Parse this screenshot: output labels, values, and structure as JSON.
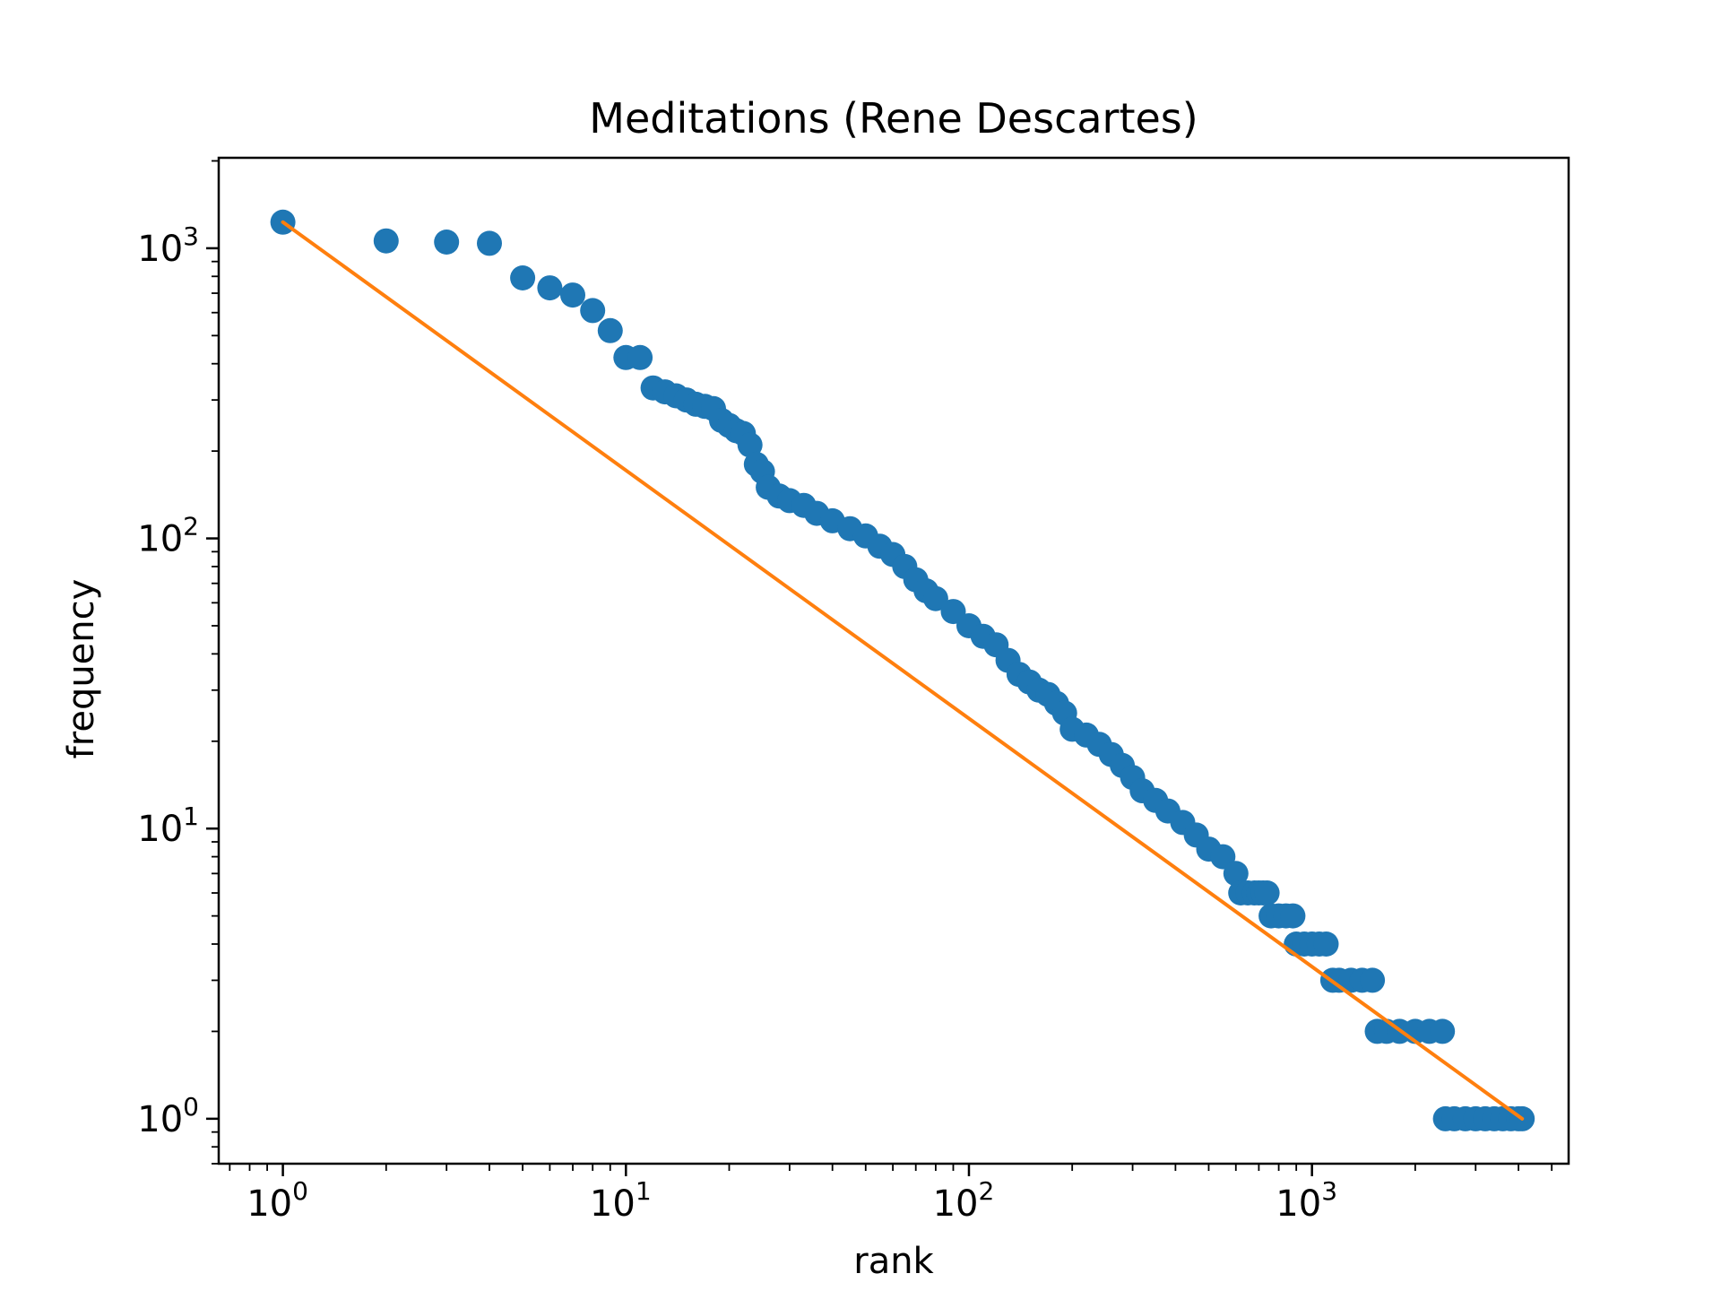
{
  "chart_data": {
    "type": "scatter",
    "title": "Meditations (Rene Descartes)",
    "xlabel": "rank",
    "ylabel": "frequency",
    "xscale": "log",
    "yscale": "log",
    "xlim": [
      0.65,
      5600
    ],
    "ylim": [
      0.7,
      2050
    ],
    "grid": false,
    "legend": "none",
    "colors": {
      "points": "#1f77b4",
      "fit": "#ff7f0e"
    },
    "x_ticks": [
      {
        "base": "10",
        "exp": "0",
        "value": 1
      },
      {
        "base": "10",
        "exp": "1",
        "value": 10
      },
      {
        "base": "10",
        "exp": "2",
        "value": 100
      },
      {
        "base": "10",
        "exp": "3",
        "value": 1000
      }
    ],
    "y_ticks": [
      {
        "base": "10",
        "exp": "0",
        "value": 1
      },
      {
        "base": "10",
        "exp": "1",
        "value": 10
      },
      {
        "base": "10",
        "exp": "2",
        "value": 100
      },
      {
        "base": "10",
        "exp": "3",
        "value": 1000
      }
    ],
    "fit_line": {
      "x": [
        1,
        4100
      ],
      "y": [
        1230,
        1
      ]
    },
    "points": [
      [
        1,
        1230
      ],
      [
        2,
        1060
      ],
      [
        3,
        1050
      ],
      [
        4,
        1040
      ],
      [
        5,
        790
      ],
      [
        6,
        730
      ],
      [
        7,
        690
      ],
      [
        8,
        610
      ],
      [
        9,
        520
      ],
      [
        10,
        420
      ],
      [
        11,
        420
      ],
      [
        12,
        330
      ],
      [
        13,
        320
      ],
      [
        14,
        310
      ],
      [
        15,
        300
      ],
      [
        16,
        290
      ],
      [
        17,
        285
      ],
      [
        18,
        280
      ],
      [
        19,
        255
      ],
      [
        20,
        245
      ],
      [
        21,
        235
      ],
      [
        22,
        230
      ],
      [
        23,
        210
      ],
      [
        24,
        180
      ],
      [
        25,
        170
      ],
      [
        26,
        150
      ],
      [
        28,
        140
      ],
      [
        30,
        135
      ],
      [
        33,
        130
      ],
      [
        36,
        122
      ],
      [
        40,
        115
      ],
      [
        45,
        108
      ],
      [
        50,
        102
      ],
      [
        55,
        94
      ],
      [
        60,
        88
      ],
      [
        65,
        80
      ],
      [
        70,
        72
      ],
      [
        75,
        66
      ],
      [
        80,
        62
      ],
      [
        90,
        56
      ],
      [
        100,
        50
      ],
      [
        110,
        46
      ],
      [
        120,
        43
      ],
      [
        130,
        38
      ],
      [
        140,
        34
      ],
      [
        150,
        32
      ],
      [
        160,
        30
      ],
      [
        170,
        29
      ],
      [
        180,
        27
      ],
      [
        190,
        25
      ],
      [
        200,
        22
      ],
      [
        220,
        21
      ],
      [
        240,
        19.5
      ],
      [
        260,
        18
      ],
      [
        280,
        16.5
      ],
      [
        300,
        15
      ],
      [
        320,
        13.5
      ],
      [
        350,
        12.5
      ],
      [
        380,
        11.5
      ],
      [
        420,
        10.5
      ],
      [
        460,
        9.5
      ],
      [
        500,
        8.5
      ],
      [
        550,
        8
      ],
      [
        600,
        7
      ],
      [
        620,
        6
      ],
      [
        650,
        6
      ],
      [
        680,
        6
      ],
      [
        700,
        6
      ],
      [
        720,
        6
      ],
      [
        740,
        6
      ],
      [
        760,
        5
      ],
      [
        800,
        5
      ],
      [
        840,
        5
      ],
      [
        880,
        5
      ],
      [
        900,
        4
      ],
      [
        950,
        4
      ],
      [
        1000,
        4
      ],
      [
        1050,
        4
      ],
      [
        1100,
        4
      ],
      [
        1150,
        3
      ],
      [
        1200,
        3
      ],
      [
        1300,
        3
      ],
      [
        1400,
        3
      ],
      [
        1500,
        3
      ],
      [
        1550,
        2
      ],
      [
        1650,
        2
      ],
      [
        1800,
        2
      ],
      [
        2000,
        2
      ],
      [
        2200,
        2
      ],
      [
        2400,
        2
      ],
      [
        2450,
        1
      ],
      [
        2600,
        1
      ],
      [
        2800,
        1
      ],
      [
        3000,
        1
      ],
      [
        3200,
        1
      ],
      [
        3400,
        1
      ],
      [
        3600,
        1
      ],
      [
        3800,
        1
      ],
      [
        4000,
        1
      ],
      [
        4100,
        1
      ]
    ]
  }
}
